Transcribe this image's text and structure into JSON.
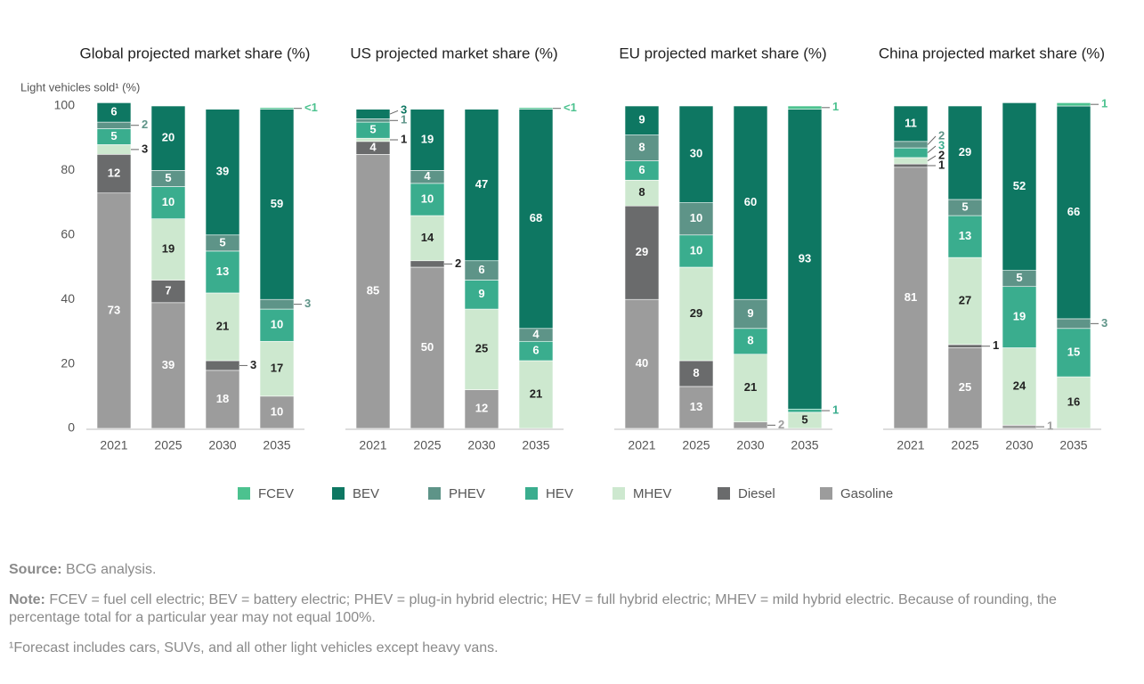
{
  "chart_data": {
    "type": "stacked_bar",
    "y_label": "Light vehicles sold¹ (%)",
    "ylim": [
      0,
      100
    ],
    "yticks": [
      0,
      20,
      40,
      60,
      80,
      100
    ],
    "series": [
      {
        "name": "FCEV",
        "color": "#4cc28f"
      },
      {
        "name": "BEV",
        "color": "#0e7762"
      },
      {
        "name": "PHEV",
        "color": "#5e9488"
      },
      {
        "name": "HEV",
        "color": "#3aad8e"
      },
      {
        "name": "MHEV",
        "color": "#cde8cf"
      },
      {
        "name": "Diesel",
        "color": "#6a6b6c"
      },
      {
        "name": "Gasoline",
        "color": "#9c9c9c"
      }
    ],
    "panels": [
      {
        "title": "Global projected market share (%)",
        "categories": [
          "2021",
          "2025",
          "2030",
          "2035"
        ],
        "series": [
          {
            "values": [
              null,
              null,
              null,
              0.5
            ],
            "value_labels": [
              null,
              null,
              null,
              "<1"
            ]
          },
          {
            "values": [
              6,
              20,
              39,
              59
            ]
          },
          {
            "values": [
              2,
              5,
              5,
              3
            ]
          },
          {
            "values": [
              5,
              10,
              13,
              10
            ]
          },
          {
            "values": [
              3,
              19,
              21,
              17
            ]
          },
          {
            "values": [
              12,
              7,
              3,
              null
            ]
          },
          {
            "values": [
              73,
              39,
              18,
              10
            ]
          }
        ]
      },
      {
        "title": "US projected market share (%)",
        "categories": [
          "2021",
          "2025",
          "2030",
          "2035"
        ],
        "series": [
          {
            "values": [
              null,
              null,
              null,
              0.5
            ],
            "value_labels": [
              null,
              null,
              null,
              "<1"
            ]
          },
          {
            "values": [
              3,
              19,
              47,
              68
            ]
          },
          {
            "values": [
              1,
              4,
              6,
              4
            ]
          },
          {
            "values": [
              5,
              10,
              9,
              6
            ]
          },
          {
            "values": [
              1,
              14,
              25,
              21
            ]
          },
          {
            "values": [
              4,
              2,
              null,
              null
            ]
          },
          {
            "values": [
              85,
              50,
              12,
              null
            ]
          }
        ]
      },
      {
        "title": "EU projected market share (%)",
        "categories": [
          "2021",
          "2025",
          "2030",
          "2035"
        ],
        "series": [
          {
            "values": [
              null,
              null,
              null,
              1
            ]
          },
          {
            "values": [
              9,
              30,
              60,
              93
            ]
          },
          {
            "values": [
              8,
              10,
              9,
              null
            ]
          },
          {
            "values": [
              6,
              10,
              8,
              1
            ]
          },
          {
            "values": [
              8,
              29,
              21,
              5
            ]
          },
          {
            "values": [
              29,
              8,
              null,
              null
            ]
          },
          {
            "values": [
              40,
              13,
              2,
              null
            ]
          }
        ]
      },
      {
        "title": "China projected market share (%)",
        "categories": [
          "2021",
          "2025",
          "2030",
          "2035"
        ],
        "series": [
          {
            "values": [
              null,
              null,
              null,
              1
            ]
          },
          {
            "values": [
              11,
              29,
              52,
              66
            ]
          },
          {
            "values": [
              2,
              5,
              5,
              3
            ]
          },
          {
            "values": [
              3,
              13,
              19,
              15
            ]
          },
          {
            "values": [
              2,
              27,
              24,
              16
            ]
          },
          {
            "values": [
              1,
              1,
              null,
              null
            ]
          },
          {
            "values": [
              81,
              25,
              1,
              null
            ]
          }
        ]
      }
    ],
    "source_label": "Source:",
    "source": "BCG analysis.",
    "note_label": "Note:",
    "note": "FCEV = fuel cell electric; BEV = battery electric; PHEV = plug-in hybrid electric; HEV = full hybrid electric; MHEV = mild hybrid electric. Because of rounding, the percentage total for a particular year may not equal 100%.",
    "footnote": "¹Forecast includes cars, SUVs, and all other light vehicles except heavy vans."
  }
}
